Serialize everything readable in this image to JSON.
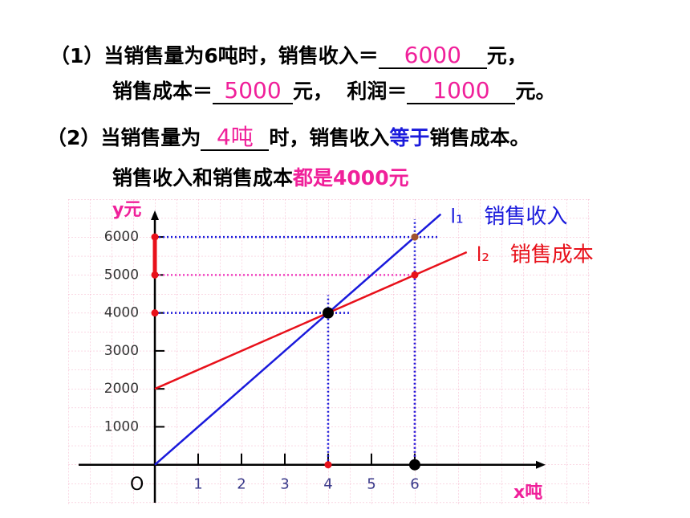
{
  "question1": {
    "line1": "（1）当销售量为6吨时，销售收入＝",
    "answer_revenue": "6000",
    "unit1": "元，",
    "line2": "销售成本＝",
    "answer_cost": "5000",
    "line2b": "元，  利润＝",
    "answer_profit": "1000",
    "unit2": "元。"
  },
  "question2": {
    "line1": "（2）当销售量为",
    "answer_amount": "4吨",
    "line1b": "时，销售收入",
    "emphasis": "等于",
    "line1c": "销售成本。",
    "note": "销售收入和销售成本",
    "note_emphasis": "都是4000元"
  },
  "chart_data": {
    "type": "line",
    "x_label": "x吨",
    "y_label": "y元",
    "origin_label": "O",
    "x": [
      0,
      4,
      6,
      6.6,
      7.2
    ],
    "series": [
      {
        "name": "销售收入",
        "tag": "l₁",
        "color": "#1a1adc",
        "values": [
          0,
          4000,
          6000,
          6600,
          null
        ]
      },
      {
        "name": "销售成本",
        "tag": "l₂",
        "color": "#e8101a",
        "values": [
          2000,
          4000,
          5000,
          null,
          5600
        ]
      }
    ],
    "xlim": [
      -1.76,
      9.02
    ],
    "ylim": [
      -1000,
      6700
    ],
    "xticks": [
      1,
      2,
      3,
      4,
      5,
      6
    ],
    "yticks": [
      1000,
      2000,
      3000,
      4000,
      5000,
      6000
    ],
    "guides": [
      {
        "x": 6,
        "y": 5000,
        "color": "#f040c0"
      },
      {
        "x": 6,
        "y": 6000,
        "color": "#1a1adc"
      },
      {
        "x": 4,
        "y": 4000,
        "color": "#1a1adc"
      }
    ],
    "profit_bar": {
      "from": 5000,
      "to": 6000,
      "color": "#e8101a"
    },
    "points": [
      {
        "x": 0,
        "y": 6000,
        "color": "#e8101a"
      },
      {
        "x": 0,
        "y": 5000,
        "color": "#e8101a"
      },
      {
        "x": 0,
        "y": 4000,
        "color": "#e8101a"
      },
      {
        "x": 4,
        "y": 0,
        "color": "#e8101a"
      },
      {
        "x": 6,
        "y": 5000,
        "color": "#e8101a"
      },
      {
        "x": 6,
        "y": 6000,
        "color": "#a0522d"
      },
      {
        "x": 4,
        "y": 4000,
        "color": "#000000"
      },
      {
        "x": 6,
        "y": 0,
        "color": "#000000"
      }
    ]
  }
}
